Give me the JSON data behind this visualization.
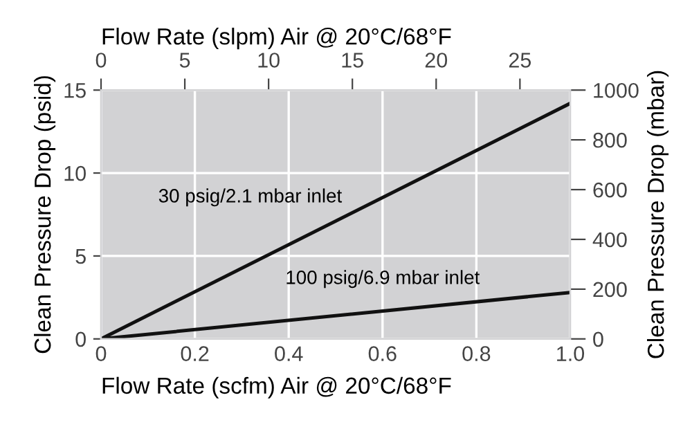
{
  "chart_data": {
    "type": "line",
    "xlabel": "Flow Rate (scfm) Air @ 20°C/68°F",
    "x2label": "Flow Rate (slpm) Air @ 20°C/68°F",
    "ylabel": "Clean Pressure Drop (psid)",
    "y2label": "Clean Pressure Drop (mbar)",
    "x": [
      0,
      1.0
    ],
    "series": [
      {
        "name": "30 psig/2.1 mbar inlet",
        "color": "#111111",
        "values": [
          0,
          14.2
        ]
      },
      {
        "name": "100 psig/6.9 mbar inlet",
        "color": "#111111",
        "values": [
          0,
          2.8
        ]
      }
    ],
    "xlim": [
      0,
      1.0
    ],
    "xticks": [
      0,
      0.2,
      0.4,
      0.6,
      0.8,
      {
        "value": 1.0,
        "label": "1.0"
      }
    ],
    "x2lim": [
      0,
      28
    ],
    "x2ticks": [
      0,
      5,
      10,
      15,
      20,
      25
    ],
    "ylim": [
      0,
      15
    ],
    "yticks": [
      0,
      5,
      10,
      15
    ],
    "y2lim": [
      0,
      1000
    ],
    "y2ticks": [
      0,
      200,
      400,
      600,
      800,
      1000
    ],
    "grid": true,
    "legend": false,
    "marker": "none",
    "line_style": "solid"
  }
}
